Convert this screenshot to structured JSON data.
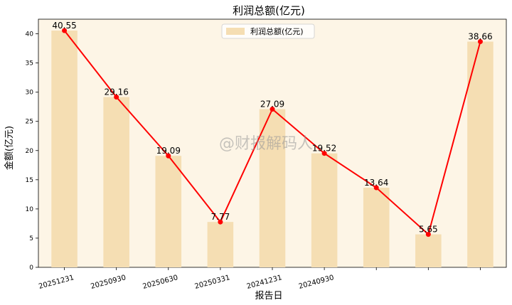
{
  "chart_data": {
    "type": "bar",
    "title": "利润总额(亿元)",
    "xlabel": "报告日",
    "ylabel": "金额(亿元)",
    "categories": [
      "20251231",
      "20250930",
      "20250630",
      "20250331",
      "20241231",
      "20240930",
      "",
      "",
      ""
    ],
    "series": [
      {
        "name": "利润总额(亿元)",
        "kind": "bar",
        "values": [
          40.55,
          29.16,
          19.09,
          7.77,
          27.09,
          19.52,
          13.64,
          5.65,
          38.66
        ]
      },
      {
        "kind": "line",
        "values": [
          40.55,
          29.16,
          19.09,
          7.77,
          27.09,
          19.52,
          13.64,
          5.65,
          38.66
        ]
      }
    ],
    "value_labels": [
      "40.55",
      "29.16",
      "19.09",
      "7.77",
      "27.09",
      "19.52",
      "13.64",
      "5.65",
      "38.66"
    ],
    "ylim": [
      0,
      42.5
    ],
    "yticks": [
      0,
      5,
      10,
      15,
      20,
      25,
      30,
      35,
      40
    ],
    "legend_position": "top-center",
    "grid": false,
    "colors": {
      "bar": "#f5deb3",
      "line": "#ff0000",
      "background": "#fdf5e6"
    },
    "watermark": "@财报解码人"
  }
}
